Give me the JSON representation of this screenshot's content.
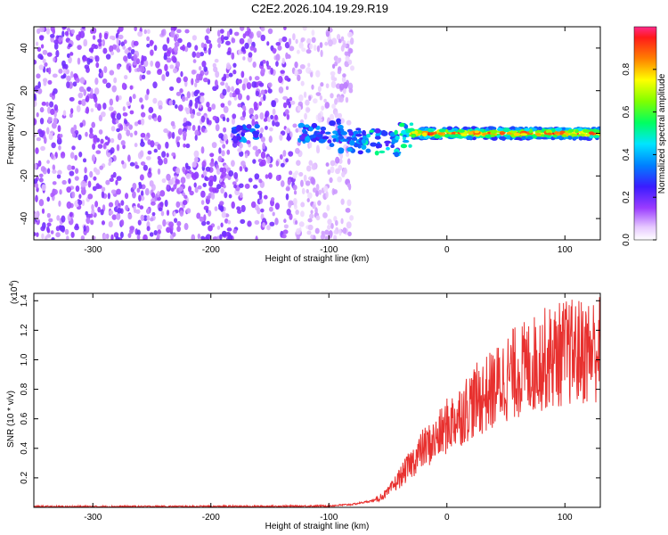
{
  "title": "C2E2.2026.104.19.29.R19",
  "chart_data": [
    {
      "type": "heatmap",
      "name": "spectrogram",
      "xlabel": "Height of straight line (km)",
      "ylabel": "Frequency (Hz)",
      "xlim": [
        -350,
        130
      ],
      "ylim": [
        -50,
        50
      ],
      "xticks": [
        -300,
        -200,
        -100,
        0,
        100
      ],
      "yticks": [
        -40,
        -20,
        0,
        20,
        40
      ],
      "colorbar": {
        "label": "Normalized spectral amplitude",
        "range": [
          0,
          1
        ],
        "ticks": [
          "0.0",
          "0.2",
          "0.4",
          "0.6",
          "0.8"
        ],
        "tick_values": [
          0.0,
          0.2,
          0.4,
          0.6,
          0.8
        ]
      },
      "description_regions": [
        {
          "x": [
            -350,
            -80
          ],
          "content": "broadband noise, low amplitude"
        },
        {
          "x": [
            -125,
            -30
          ],
          "content": "signal emerging near 0 Hz"
        },
        {
          "x": [
            -30,
            130
          ],
          "content": "strong narrowband signal at ~0 Hz"
        }
      ]
    },
    {
      "type": "line",
      "name": "snr",
      "xlabel": "Height of straight line (km)",
      "ylabel": "SNR (10 * v/v)",
      "yscale_label": "(x10",
      "yscale_exp": "4",
      "yscale_close": ")",
      "xlim": [
        -350,
        130
      ],
      "ylim": [
        0,
        1.45
      ],
      "xticks": [
        -300,
        -200,
        -100,
        0,
        100
      ],
      "yticks": [
        0.2,
        0.4,
        0.6,
        0.8,
        1.0,
        1.2,
        1.4
      ],
      "ytick_labels": [
        "0.2",
        "0.4",
        "0.6",
        "0.8",
        "1.0",
        "1.2",
        "1.4"
      ],
      "color": "#e8312f",
      "x": [
        -350,
        -300,
        -250,
        -200,
        -150,
        -100,
        -80,
        -60,
        -50,
        -40,
        -30,
        -20,
        -10,
        0,
        10,
        20,
        30,
        40,
        50,
        60,
        70,
        80,
        90,
        100,
        110,
        120,
        130
      ],
      "y": [
        0.005,
        0.005,
        0.006,
        0.006,
        0.007,
        0.01,
        0.02,
        0.05,
        0.1,
        0.2,
        0.3,
        0.4,
        0.45,
        0.55,
        0.62,
        0.7,
        0.75,
        0.8,
        0.88,
        0.92,
        0.95,
        1.0,
        1.02,
        1.05,
        1.05,
        1.06,
        1.08
      ]
    }
  ]
}
